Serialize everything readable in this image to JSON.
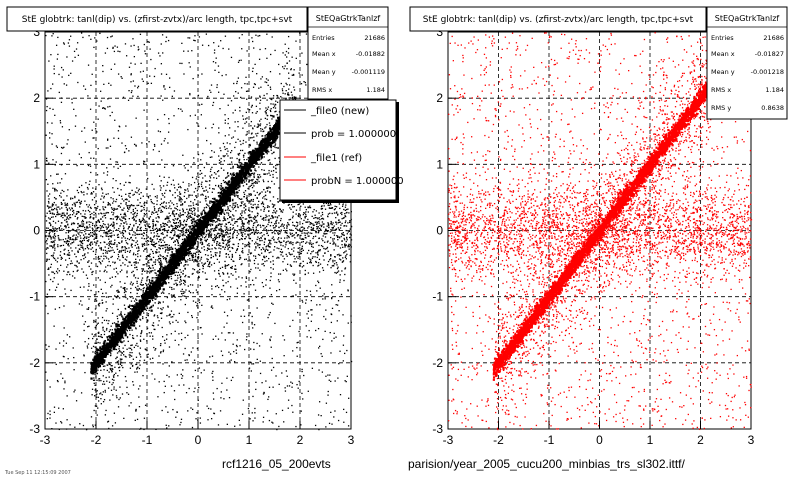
{
  "chart_data": [
    {
      "type": "scatter",
      "title": "StE globtrk: tanl(dip) vs. (zfirst-zvtx)/arc length, tpc,tpc+svt",
      "xlim": [
        -3,
        3
      ],
      "ylim": [
        -3,
        3
      ],
      "xticks": [
        "-3",
        "-2",
        "-1",
        "0",
        "1",
        "2",
        "3"
      ],
      "yticks": [
        "-3",
        "-2",
        "-1",
        "0",
        "1",
        "2",
        "3"
      ],
      "grid": true,
      "series": [
        {
          "name": "_file0 (new)",
          "color": "#000000",
          "trend_slope": 1.0,
          "trend_range": [
            -2.1,
            1.9
          ]
        }
      ],
      "stats": {
        "name": "StEQaGtrkTanlzf",
        "rows": [
          {
            "label": "Entries",
            "value": "21686"
          },
          {
            "label": "Mean x",
            "value": "-0.01882"
          },
          {
            "label": "Mean y",
            "value": "-0.001119"
          },
          {
            "label": "RMS x",
            "value": "1.184"
          }
        ]
      },
      "legend": {
        "placement": "top-right",
        "entries": [
          {
            "label": "_file0 (new)",
            "color": "#000000"
          },
          {
            "label": "prob = 1.000000",
            "color": "#000000"
          },
          {
            "label": "_file1 (ref)",
            "color": "#ff0000"
          },
          {
            "label": "probN = 1.000000",
            "color": "#ff0000"
          }
        ]
      },
      "footer": "rcf1216_05_200evts",
      "footer_small": "Tue Sep 11 12:15:09 2007"
    },
    {
      "type": "scatter",
      "title": "StE globtrk: tanl(dip) vs. (zfirst-zvtx)/arc length, tpc,tpc+svt",
      "xlim": [
        -3,
        3
      ],
      "ylim": [
        -3,
        3
      ],
      "xticks": [
        "-3",
        "-2",
        "-1",
        "0",
        "1",
        "2",
        "3"
      ],
      "yticks": [
        "-3",
        "-2",
        "-1",
        "0",
        "1",
        "2",
        "3"
      ],
      "grid": true,
      "series": [
        {
          "name": "_file1 (ref)",
          "color": "#ff0000",
          "trend_slope": 1.0,
          "trend_range": [
            -2.1,
            2.2
          ]
        }
      ],
      "stats": {
        "name": "StEQaGtrkTanlzf",
        "rows": [
          {
            "label": "Entries",
            "value": "21686"
          },
          {
            "label": "Mean x",
            "value": "-0.01827"
          },
          {
            "label": "Mean y",
            "value": "-0.001218"
          },
          {
            "label": "RMS x",
            "value": "1.184"
          },
          {
            "label": "RMS y",
            "value": "0.8638"
          }
        ]
      },
      "footer": "parision/year_2005_cucu200_minbias_trs_sl302.ittf/"
    }
  ]
}
